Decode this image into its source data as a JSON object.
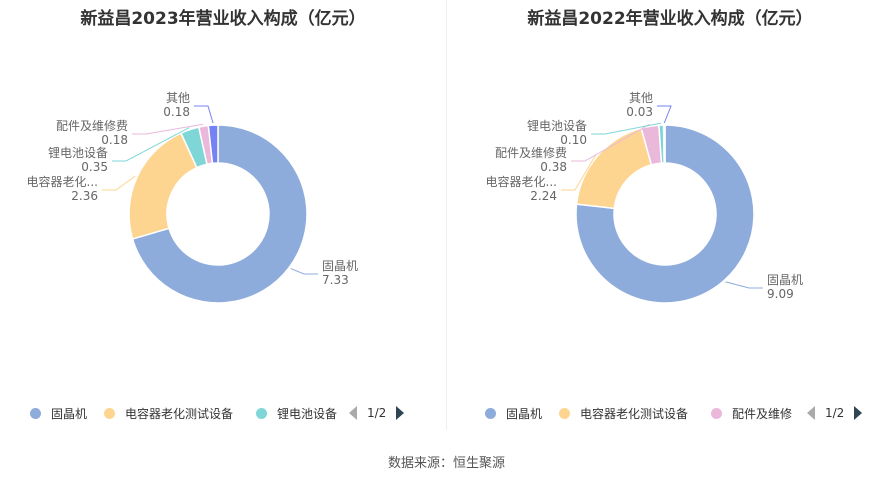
{
  "chart_data": [
    {
      "type": "pie",
      "title": "新益昌2023年营业收入构成（亿元）",
      "slices": [
        {
          "name": "固晶机",
          "label": "固晶机",
          "value": 7.33,
          "color": "#8eacdb"
        },
        {
          "name": "电容器老化测试设备",
          "label": "电容器老化...",
          "value": 2.36,
          "color": "#fdd591"
        },
        {
          "name": "锂电池设备",
          "label": "锂电池设备",
          "value": 0.35,
          "color": "#7fd6d7"
        },
        {
          "name": "配件及维修费",
          "label": "配件及维修费",
          "value": 0.18,
          "color": "#e9b8da"
        },
        {
          "name": "其他",
          "label": "其他",
          "value": 0.18,
          "color": "#7482f4"
        }
      ],
      "legend": {
        "position": "bottom",
        "items": [
          "固晶机",
          "电容器老化测试设备",
          "锂电池设备"
        ],
        "page": "1/2"
      }
    },
    {
      "type": "pie",
      "title": "新益昌2022年营业收入构成（亿元）",
      "slices": [
        {
          "name": "固晶机",
          "label": "固晶机",
          "value": 9.09,
          "color": "#8eacdb"
        },
        {
          "name": "电容器老化测试设备",
          "label": "电容器老化...",
          "value": 2.24,
          "color": "#fdd591"
        },
        {
          "name": "配件及维修费",
          "label": "配件及维修费",
          "value": 0.38,
          "color": "#e9b8da"
        },
        {
          "name": "锂电池设备",
          "label": "锂电池设备",
          "value": 0.1,
          "color": "#7fd6d7"
        },
        {
          "name": "其他",
          "label": "其他",
          "value": 0.03,
          "color": "#7482f4"
        }
      ],
      "legend": {
        "position": "bottom",
        "items": [
          "固晶机",
          "电容器老化测试设备",
          "配件及维修"
        ],
        "page": "1/2"
      }
    }
  ],
  "source": "数据来源：恒生聚源"
}
